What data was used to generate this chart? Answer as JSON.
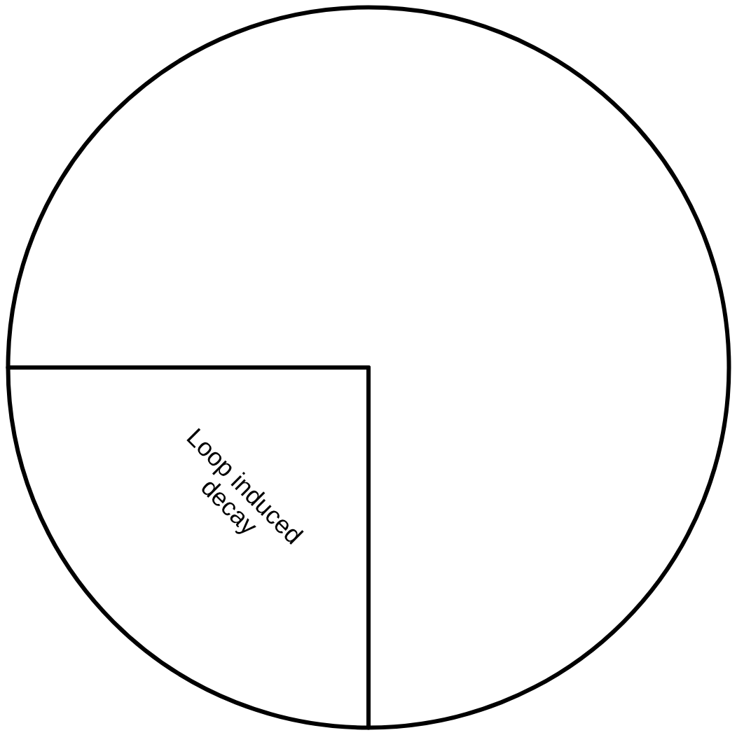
{
  "chart_data": {
    "type": "pie",
    "categories": [
      null,
      "Loop induced decay"
    ],
    "values": [
      75,
      25
    ],
    "colors": [
      "#ffffff",
      "#ffffff"
    ],
    "legend": false
  }
}
